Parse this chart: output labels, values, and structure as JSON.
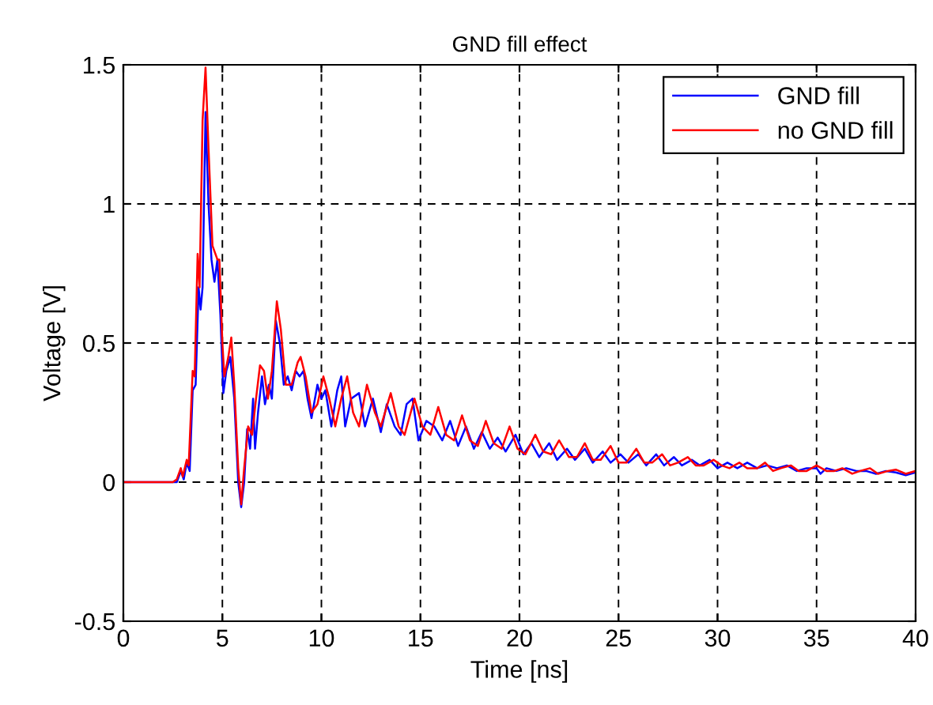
{
  "chart_data": {
    "type": "line",
    "title": "GND fill effect",
    "xlabel": "Time [ns]",
    "ylabel": "Voltage [V]",
    "xlim": [
      0,
      40
    ],
    "ylim": [
      -0.5,
      1.5
    ],
    "xticks": [
      0,
      5,
      10,
      15,
      20,
      25,
      30,
      35,
      40
    ],
    "yticks": [
      -0.5,
      0,
      0.5,
      1,
      1.5
    ],
    "grid": true,
    "legend": "top right",
    "marker": "none",
    "line_style": "solid",
    "series": [
      {
        "name": "GND fill",
        "color": "#0000ff",
        "x": [
          0,
          2.7,
          2.9,
          3.05,
          3.2,
          3.35,
          3.5,
          3.65,
          3.8,
          3.9,
          4.0,
          4.15,
          4.3,
          4.45,
          4.6,
          4.75,
          4.9,
          5.05,
          5.2,
          5.4,
          5.6,
          5.8,
          5.95,
          6.1,
          6.25,
          6.4,
          6.55,
          6.65,
          6.8,
          7.0,
          7.15,
          7.35,
          7.5,
          7.7,
          7.9,
          8.1,
          8.3,
          8.5,
          8.7,
          8.9,
          9.1,
          9.3,
          9.5,
          9.8,
          10.0,
          10.2,
          10.5,
          10.8,
          11.0,
          11.2,
          11.5,
          11.9,
          12.2,
          12.6,
          13.0,
          13.3,
          13.7,
          14.0,
          14.3,
          14.6,
          14.9,
          15.3,
          15.7,
          16.1,
          16.5,
          16.9,
          17.3,
          17.7,
          18.1,
          18.5,
          18.9,
          19.3,
          19.8,
          20.2,
          20.6,
          21.0,
          21.5,
          21.9,
          22.4,
          22.8,
          23.3,
          23.7,
          24.2,
          24.6,
          25.1,
          25.5,
          26.0,
          26.4,
          26.9,
          27.3,
          27.8,
          28.2,
          28.7,
          29.1,
          29.6,
          30.0,
          30.5,
          31.0,
          31.5,
          32.0,
          32.5,
          33.0,
          33.5,
          34.0,
          34.5,
          35.0,
          35.2,
          35.5,
          36,
          36.5,
          37,
          37.5,
          38,
          38.5,
          39,
          39.5,
          40
        ],
        "values": [
          0,
          0,
          0.04,
          0.01,
          0.07,
          0.04,
          0.33,
          0.35,
          0.7,
          0.62,
          0.7,
          1.33,
          1.0,
          0.8,
          0.72,
          0.8,
          0.6,
          0.32,
          0.4,
          0.45,
          0.3,
          0.0,
          -0.09,
          0.0,
          0.19,
          0.12,
          0.3,
          0.12,
          0.25,
          0.38,
          0.28,
          0.35,
          0.3,
          0.58,
          0.5,
          0.35,
          0.38,
          0.33,
          0.4,
          0.38,
          0.4,
          0.3,
          0.23,
          0.35,
          0.3,
          0.33,
          0.2,
          0.33,
          0.38,
          0.2,
          0.3,
          0.32,
          0.2,
          0.3,
          0.18,
          0.28,
          0.2,
          0.17,
          0.28,
          0.3,
          0.15,
          0.22,
          0.2,
          0.15,
          0.22,
          0.13,
          0.2,
          0.12,
          0.18,
          0.12,
          0.16,
          0.11,
          0.17,
          0.1,
          0.14,
          0.09,
          0.14,
          0.08,
          0.12,
          0.08,
          0.12,
          0.07,
          0.11,
          0.07,
          0.1,
          0.07,
          0.1,
          0.06,
          0.1,
          0.06,
          0.09,
          0.06,
          0.08,
          0.06,
          0.08,
          0.05,
          0.07,
          0.05,
          0.07,
          0.05,
          0.06,
          0.05,
          0.06,
          0.04,
          0.05,
          0.05,
          0.03,
          0.05,
          0.04,
          0.05,
          0.04,
          0.04,
          0.03,
          0.04,
          0.035,
          0.025,
          0.035
        ]
      },
      {
        "name": "no GND fill",
        "color": "#ff0000",
        "x": [
          0,
          2.5,
          2.7,
          2.9,
          3.0,
          3.2,
          3.3,
          3.5,
          3.6,
          3.75,
          3.85,
          4.0,
          4.15,
          4.3,
          4.5,
          4.75,
          4.85,
          5.0,
          5.1,
          5.3,
          5.45,
          5.6,
          5.8,
          5.95,
          6.1,
          6.3,
          6.5,
          6.7,
          6.9,
          7.1,
          7.3,
          7.5,
          7.75,
          7.95,
          8.2,
          8.5,
          8.8,
          8.95,
          9.2,
          9.5,
          9.8,
          10.1,
          10.4,
          10.7,
          11.0,
          11.3,
          11.6,
          11.9,
          12.3,
          12.7,
          13.0,
          13.5,
          13.9,
          14.2,
          14.7,
          15.1,
          15.5,
          15.9,
          16.3,
          16.7,
          17.1,
          17.5,
          17.9,
          18.3,
          18.7,
          19.1,
          19.5,
          19.9,
          20.3,
          20.8,
          21.2,
          21.6,
          22.0,
          22.5,
          22.9,
          23.3,
          23.7,
          24.1,
          24.6,
          25.0,
          25.4,
          25.9,
          26.3,
          26.7,
          27.2,
          27.6,
          28.0,
          28.5,
          28.9,
          29.3,
          29.8,
          30.2,
          30.6,
          31.1,
          31.5,
          32,
          32.4,
          32.8,
          33.2,
          33.7,
          34.1,
          34.5,
          35,
          35.5,
          35.9,
          36.3,
          36.8,
          37.2,
          37.7,
          38.1,
          38.6,
          39.0,
          39.5,
          40
        ],
        "values": [
          0,
          0,
          0.01,
          0.05,
          0.02,
          0.08,
          0.06,
          0.4,
          0.38,
          0.82,
          0.7,
          1.3,
          1.49,
          1.2,
          0.85,
          0.8,
          0.8,
          0.5,
          0.38,
          0.45,
          0.52,
          0.35,
          0.05,
          -0.08,
          0.05,
          0.2,
          0.17,
          0.3,
          0.42,
          0.4,
          0.3,
          0.4,
          0.65,
          0.55,
          0.35,
          0.35,
          0.43,
          0.45,
          0.38,
          0.25,
          0.28,
          0.38,
          0.3,
          0.2,
          0.3,
          0.38,
          0.25,
          0.2,
          0.35,
          0.25,
          0.2,
          0.32,
          0.2,
          0.17,
          0.3,
          0.2,
          0.17,
          0.27,
          0.17,
          0.15,
          0.24,
          0.15,
          0.13,
          0.22,
          0.14,
          0.12,
          0.2,
          0.12,
          0.1,
          0.17,
          0.11,
          0.1,
          0.15,
          0.09,
          0.09,
          0.14,
          0.08,
          0.08,
          0.13,
          0.07,
          0.07,
          0.12,
          0.07,
          0.07,
          0.1,
          0.06,
          0.07,
          0.09,
          0.06,
          0.06,
          0.08,
          0.06,
          0.05,
          0.07,
          0.05,
          0.05,
          0.07,
          0.04,
          0.05,
          0.06,
          0.04,
          0.04,
          0.06,
          0.04,
          0.04,
          0.05,
          0.03,
          0.04,
          0.05,
          0.03,
          0.04,
          0.045,
          0.03,
          0.04
        ]
      }
    ]
  }
}
